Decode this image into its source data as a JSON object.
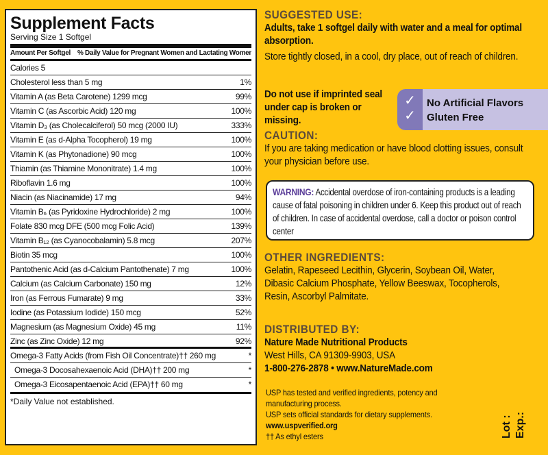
{
  "facts": {
    "title": "Supplement Facts",
    "serving": "Serving Size 1 Softgel",
    "col1": "Amount Per Softgel",
    "col2": "% Daily Value for Pregnant Women and Lactating Women",
    "calories": "Calories  5",
    "rows": [
      {
        "name": "Cholesterol  less than 5 mg",
        "dv": "1%"
      },
      {
        "name": "Vitamin A (as Beta Carotene)  1299 mcg",
        "dv": "99%"
      },
      {
        "name": "Vitamin C (as Ascorbic Acid)  120 mg",
        "dv": "100%"
      },
      {
        "name": "Vitamin D₃ (as Cholecalciferol)  50 mcg (2000 IU)",
        "dv": "333%"
      },
      {
        "name": "Vitamin E (as d-Alpha Tocopherol)  19 mg",
        "dv": "100%"
      },
      {
        "name": "Vitamin K (as Phytonadione)  90 mcg",
        "dv": "100%"
      },
      {
        "name": "Thiamin (as Thiamine Mononitrate)  1.4 mg",
        "dv": "100%"
      },
      {
        "name": "Riboflavin  1.6 mg",
        "dv": "100%"
      },
      {
        "name": "Niacin (as Niacinamide)  17 mg",
        "dv": "94%"
      },
      {
        "name": "Vitamin B₆ (as Pyridoxine Hydrochloride)  2 mg",
        "dv": "100%"
      },
      {
        "name": "Folate  830 mcg DFE (500 mcg Folic Acid)",
        "dv": "139%"
      },
      {
        "name": "Vitamin B₁₂ (as Cyanocobalamin)  5.8 mcg",
        "dv": "207%"
      },
      {
        "name": "Biotin  35 mcg",
        "dv": "100%"
      },
      {
        "name": "Pantothenic Acid (as d-Calcium Pantothenate)  7 mg",
        "dv": "100%"
      },
      {
        "name": "Calcium (as Calcium Carbonate)  150 mg",
        "dv": "12%"
      },
      {
        "name": "Iron (as Ferrous Fumarate)  9 mg",
        "dv": "33%"
      },
      {
        "name": "Iodine (as Potassium Iodide)  150 mcg",
        "dv": "52%"
      },
      {
        "name": "Magnesium (as Magnesium Oxide)  45 mg",
        "dv": "11%"
      },
      {
        "name": "Zinc (as Zinc Oxide)  12 mg",
        "dv": "92%"
      }
    ],
    "omega": [
      {
        "name": "Omega-3 Fatty Acids (from Fish Oil Concentrate)†† 260 mg",
        "dv": "*"
      },
      {
        "name": "Omega-3 Docosahexaenoic Acid (DHA)†† 200 mg",
        "dv": "*"
      },
      {
        "name": "Omega-3 Eicosapentaenoic Acid (EPA)†† 60 mg",
        "dv": "*"
      }
    ],
    "footnote": "*Daily Value not established."
  },
  "suggested": {
    "heading": "SUGGESTED USE:",
    "bold": "Adults, take 1 softgel daily with water and a meal for optimal absorption.",
    "text": "Store tightly closed, in a cool, dry place, out of reach of children."
  },
  "seal": "Do not use if imprinted seal under cap is broken or missing.",
  "badge": {
    "items": [
      "No Artificial Flavors",
      "Gluten Free"
    ],
    "icon": "check-icon"
  },
  "caution": {
    "heading": "CAUTION:",
    "text": "If you are taking medication or have blood clotting issues, consult your physician before use."
  },
  "warning": {
    "label": "WARNING:",
    "text": "Accidental overdose of iron-containing products is a leading cause of fatal poisoning in children under 6. Keep this product out of reach of children. In case of accidental overdose, call a doctor or poison control center"
  },
  "ingredients": {
    "heading": "OTHER INGREDIENTS:",
    "text": "Gelatin, Rapeseed Lecithin, Glycerin, Soybean Oil, Water, Dibasic Calcium Phosphate, Yellow Beeswax, Tocopherols, Resin, Ascorbyl Palmitate."
  },
  "distributed": {
    "heading": "DISTRIBUTED BY:",
    "company": "Nature Made Nutritional Products",
    "address": "West Hills, CA 91309-9903, USA",
    "contact": "1-800-276-2878 • www.NatureMade.com"
  },
  "usp": {
    "line1": "USP has tested and verified ingredients, potency and manufacturing process.",
    "line2": "USP sets official standards for dietary supplements.",
    "url": "www.uspverified.org",
    "note": "†† As ethyl esters"
  },
  "lot": "Lot :",
  "exp": "Exp.:",
  "colors": {
    "background": "#FFC40F",
    "heading": "#5b4a3b",
    "badge": "#8179b8",
    "warning": "#5c3f9a"
  }
}
